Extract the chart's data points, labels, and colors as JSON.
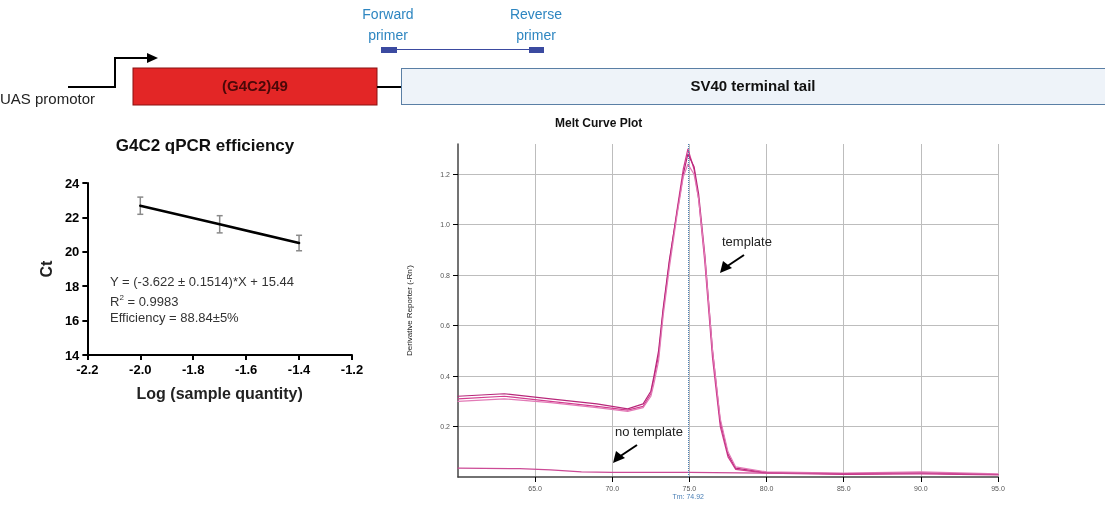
{
  "chart_data": [
    {
      "type": "other",
      "annotations": [
        "UAS promotor",
        "(G4C2)49",
        "Forward primer",
        "Reverse primer",
        "SV40 terminal tail"
      ]
    },
    {
      "type": "line",
      "title": "G4C2 qPCR efficiency",
      "xlabel": "Log (sample quantity)",
      "ylabel": "Ct",
      "x": [
        -2.0,
        -1.7,
        -1.4
      ],
      "series": [
        {
          "color": "#000000",
          "values": [
            22.68,
            21.6,
            20.51
          ],
          "errors": [
            0.5,
            0.5,
            0.45
          ]
        }
      ],
      "xlim": [
        -2.2,
        -1.2
      ],
      "xticks": [
        -2.2,
        {
          "value": -2.0,
          "label": "-2.0"
        },
        -1.8,
        -1.6,
        -1.4,
        -1.2
      ],
      "ylim": [
        14,
        24
      ],
      "yticks": [
        14,
        16,
        18,
        20,
        22,
        24
      ],
      "annotations": [
        "Y = (-3.622 ± 0.1514)*X + 15.44",
        "R$^{2}$ = 0.9983",
        "Efficiency = 88.84±5%"
      ],
      "marker": "none"
    },
    {
      "type": "line",
      "title": "Melt Curve Plot",
      "ylabel": "Derivative Reporter (-Rn')",
      "series": [
        {
          "color": "#d23c8f",
          "x": [
            60,
            63,
            66,
            69,
            71,
            72,
            72.5,
            72.7,
            73,
            73.3,
            73.7,
            74.2,
            74.6,
            74.9,
            75.3,
            75.6,
            76,
            76.5,
            77,
            77.5,
            78,
            80,
            85,
            90,
            95
          ],
          "values": [
            0.31,
            0.32,
            0.3,
            0.28,
            0.265,
            0.28,
            0.33,
            0.39,
            0.48,
            0.66,
            0.85,
            1.06,
            1.22,
            1.3,
            1.22,
            1.1,
            0.85,
            0.47,
            0.2,
            0.08,
            0.03,
            0.015,
            0.01,
            0.012,
            0.008
          ]
        },
        {
          "color": "#b8277a",
          "x": [
            60,
            63,
            66,
            69,
            71,
            72,
            72.5,
            72.7,
            73,
            73.3,
            73.7,
            74.2,
            74.6,
            74.9,
            75.3,
            75.6,
            76,
            76.5,
            77,
            77.5,
            78,
            80,
            85,
            90,
            95
          ],
          "values": [
            0.32,
            0.33,
            0.31,
            0.29,
            0.27,
            0.29,
            0.34,
            0.4,
            0.5,
            0.67,
            0.86,
            1.05,
            1.2,
            1.28,
            1.23,
            1.12,
            0.88,
            0.5,
            0.22,
            0.09,
            0.035,
            0.018,
            0.012,
            0.015,
            0.01
          ]
        },
        {
          "color": "#e27ab6",
          "x": [
            60,
            63,
            66,
            69,
            71,
            72,
            72.5,
            72.7,
            73,
            73.3,
            73.7,
            74.2,
            74.6,
            74.9,
            75.3,
            75.6,
            76,
            76.5,
            77,
            77.5,
            78,
            80,
            85,
            90,
            95
          ],
          "values": [
            0.3,
            0.31,
            0.295,
            0.275,
            0.26,
            0.275,
            0.32,
            0.37,
            0.46,
            0.64,
            0.83,
            1.04,
            1.19,
            1.24,
            1.2,
            1.1,
            0.87,
            0.5,
            0.23,
            0.1,
            0.04,
            0.02,
            0.015,
            0.02,
            0.012
          ]
        },
        {
          "color": "#cc4a96",
          "x": [
            60,
            64,
            66,
            68,
            70,
            75,
            80,
            85,
            90,
            95
          ],
          "values": [
            0.035,
            0.033,
            0.028,
            0.02,
            0.018,
            0.018,
            0.015,
            0.013,
            0.015,
            0.01
          ]
        }
      ],
      "xlim": [
        60,
        95
      ],
      "xticks": [
        {
          "value": 65,
          "label": "65.0"
        },
        {
          "value": 70,
          "label": "70.0"
        },
        {
          "value": 75,
          "label": "75.0"
        },
        {
          "value": 80,
          "label": "80.0"
        },
        {
          "value": 85,
          "label": "85.0"
        },
        {
          "value": 90,
          "label": "90.0"
        },
        {
          "value": 95,
          "label": "95.0"
        }
      ],
      "ylim": [
        0,
        1.32
      ],
      "yticks": [
        0.2,
        0.4,
        0.6,
        0.8,
        {
          "value": 1.0,
          "label": "1.0"
        },
        1.2
      ],
      "ref_lines": [
        {
          "axis": "x",
          "value": 74.92,
          "label": "Tm: 74.92",
          "color": "#4a7fb5",
          "line_style": "dotted"
        }
      ],
      "annotations": [
        "template",
        "no template"
      ],
      "marker": "none",
      "grid": true
    }
  ]
}
